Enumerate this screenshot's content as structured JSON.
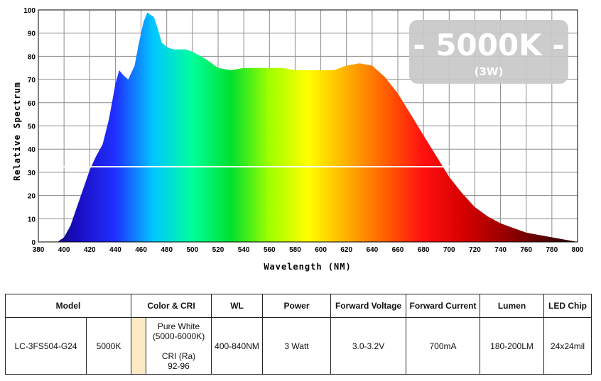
{
  "chart_data": {
    "type": "area",
    "xlabel": "Wavelength (NM)",
    "ylabel": "Relative Spectrum",
    "xlim": [
      380,
      800
    ],
    "ylim": [
      0,
      100
    ],
    "x_ticks": [
      380,
      400,
      420,
      440,
      460,
      480,
      500,
      520,
      540,
      560,
      580,
      600,
      620,
      640,
      660,
      680,
      700,
      720,
      740,
      760,
      780,
      800
    ],
    "y_ticks": [
      0,
      10,
      20,
      30,
      40,
      50,
      60,
      70,
      80,
      90,
      100
    ],
    "grid": true,
    "series": [
      {
        "x": [
          380,
          395,
          400,
          405,
          410,
          415,
          420,
          425,
          430,
          435,
          440,
          443,
          446,
          450,
          455,
          458,
          462,
          465,
          467,
          470,
          473,
          476,
          480,
          485,
          490,
          495,
          500,
          510,
          520,
          530,
          540,
          550,
          560,
          570,
          580,
          590,
          600,
          610,
          620,
          630,
          640,
          650,
          660,
          670,
          680,
          690,
          700,
          710,
          720,
          730,
          740,
          750,
          760,
          770,
          780,
          790,
          800
        ],
        "y": [
          0,
          0,
          2,
          7,
          15,
          23,
          31,
          37,
          42,
          53,
          68,
          74,
          72,
          70,
          76,
          85,
          95,
          99,
          98,
          97,
          92,
          86,
          84,
          83,
          83,
          83,
          82,
          79,
          75,
          74,
          75,
          75,
          75,
          75,
          74,
          74,
          74,
          74,
          76,
          77,
          76,
          71,
          64,
          55,
          46,
          37,
          28,
          21,
          15,
          11,
          8,
          6,
          4,
          3,
          2,
          1,
          0
        ]
      }
    ],
    "colors": [
      "#000a3c",
      "#1a0cc0",
      "#2030ff",
      "#00c8ff",
      "#00ff9a",
      "#00e030",
      "#a0ff00",
      "#ffff00",
      "#ffb000",
      "#ff6000",
      "#ff1010",
      "#d80000",
      "#a00000",
      "#600000",
      "#200000"
    ]
  },
  "badge": {
    "main": "- 5000K -",
    "sub": "(3W)"
  },
  "table": {
    "headers": {
      "model": "Model",
      "color_cri": "Color & CRI",
      "wl": "WL",
      "power": "Power",
      "forward_voltage": "Forward Voltage",
      "forward_current": "Forward Current",
      "lumen": "Lumen",
      "led_chip": "LED Chip"
    },
    "row": {
      "model": "LC-3FS504-G24",
      "cct": "5000K",
      "color_line1": "Pure White",
      "color_line2": "(5000-6000K)",
      "cri_line1": "CRI (Ra)",
      "cri_line2": "92-96",
      "wl": "400-840NM",
      "power": "3 Watt",
      "forward_voltage": "3.0-3.2V",
      "forward_current": "700mA",
      "lumen": "180-200LM",
      "led_chip": "24x24mil"
    },
    "swatch_color": "#fde9c4"
  }
}
